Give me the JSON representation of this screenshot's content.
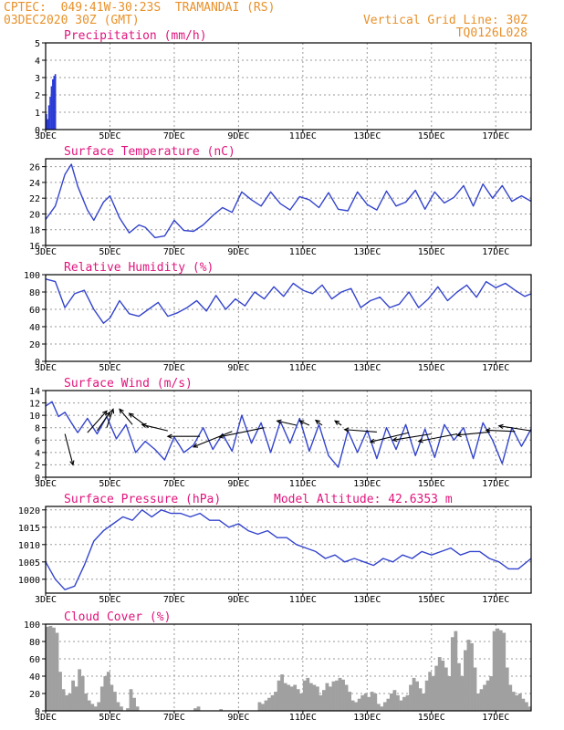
{
  "header": {
    "line1": "CPTEC:  049:41W-30:23S  TRAMANDAI (RS)",
    "line2": "03DEC2020 30Z (GMT)",
    "right1": "Vertical Grid Line: 30Z",
    "right2": "TQ0126L028"
  },
  "x_ticks": [
    "3DEC",
    "5DEC",
    "7DEC",
    "9DEC",
    "11DEC",
    "13DEC",
    "15DEC",
    "17DEC"
  ],
  "colors": {
    "line": "#3344cc",
    "title": "#e0147c",
    "header": "#e8912a",
    "bar_precip": "#2a3bd6",
    "bar_cloud": "#a0a0a0"
  },
  "chart_data": [
    {
      "type": "bar",
      "title": "Precipitation (mm/h)",
      "ylim": [
        0,
        5
      ],
      "yticks": [
        "0",
        "1",
        "2",
        "3",
        "4",
        "5"
      ],
      "x_range_days": [
        3,
        18.1
      ],
      "x": [
        3.0,
        3.04,
        3.08,
        3.12,
        3.16,
        3.2,
        3.24,
        3.28
      ],
      "values": [
        0.9,
        0.6,
        1.4,
        1.9,
        2.5,
        2.9,
        3.1,
        3.2
      ]
    },
    {
      "type": "line",
      "title": "Surface Temperature (nC)",
      "ylim": [
        16,
        27
      ],
      "yticks": [
        "16",
        "18",
        "20",
        "22",
        "24",
        "26"
      ],
      "x": [
        3.0,
        3.3,
        3.6,
        3.8,
        4.0,
        4.3,
        4.5,
        4.8,
        5.0,
        5.3,
        5.6,
        5.9,
        6.1,
        6.4,
        6.7,
        7.0,
        7.3,
        7.6,
        7.9,
        8.2,
        8.5,
        8.8,
        9.1,
        9.4,
        9.7,
        10.0,
        10.3,
        10.6,
        10.9,
        11.2,
        11.5,
        11.8,
        12.1,
        12.4,
        12.7,
        13.0,
        13.3,
        13.6,
        13.9,
        14.2,
        14.5,
        14.8,
        15.1,
        15.4,
        15.7,
        16.0,
        16.3,
        16.6,
        16.9,
        17.2,
        17.5,
        17.8,
        18.1
      ],
      "values": [
        19.3,
        21.0,
        25.0,
        26.3,
        23.5,
        20.5,
        19.2,
        21.5,
        22.3,
        19.5,
        17.6,
        18.6,
        18.3,
        17.0,
        17.2,
        19.2,
        17.9,
        17.8,
        18.6,
        19.8,
        20.8,
        20.2,
        22.8,
        21.8,
        21.0,
        22.8,
        21.3,
        20.5,
        22.2,
        21.8,
        20.8,
        22.7,
        20.6,
        20.4,
        22.8,
        21.2,
        20.5,
        22.9,
        21.0,
        21.5,
        23.0,
        20.6,
        22.8,
        21.4,
        22.1,
        23.6,
        21.0,
        23.8,
        22.0,
        23.6,
        21.6,
        22.3,
        21.6
      ]
    },
    {
      "type": "line",
      "title": "Relative Humidity (%)",
      "ylim": [
        0,
        100
      ],
      "yticks": [
        "0",
        "20",
        "40",
        "60",
        "80",
        "100"
      ],
      "x": [
        3.0,
        3.3,
        3.6,
        3.9,
        4.2,
        4.5,
        4.8,
        5.0,
        5.3,
        5.6,
        5.9,
        6.2,
        6.5,
        6.8,
        7.1,
        7.4,
        7.7,
        8.0,
        8.3,
        8.6,
        8.9,
        9.2,
        9.5,
        9.8,
        10.1,
        10.4,
        10.7,
        11.0,
        11.3,
        11.6,
        11.9,
        12.2,
        12.5,
        12.8,
        13.1,
        13.4,
        13.7,
        14.0,
        14.3,
        14.6,
        14.9,
        15.2,
        15.5,
        15.8,
        16.1,
        16.4,
        16.7,
        17.0,
        17.3,
        17.6,
        17.9,
        18.1
      ],
      "values": [
        95,
        92,
        62,
        78,
        82,
        60,
        44,
        50,
        70,
        55,
        52,
        60,
        68,
        52,
        56,
        62,
        70,
        58,
        76,
        60,
        72,
        64,
        80,
        72,
        86,
        75,
        90,
        82,
        78,
        88,
        72,
        80,
        84,
        62,
        70,
        74,
        62,
        66,
        80,
        62,
        72,
        86,
        70,
        80,
        88,
        74,
        92,
        85,
        90,
        82,
        75,
        78
      ]
    },
    {
      "type": "line",
      "title": "Surface Wind (m/s)",
      "ylim": [
        0,
        14
      ],
      "yticks": [
        "0",
        "2",
        "4",
        "6",
        "8",
        "10",
        "12",
        "14"
      ],
      "x": [
        3.0,
        3.2,
        3.4,
        3.6,
        3.8,
        4.0,
        4.3,
        4.6,
        4.9,
        5.2,
        5.5,
        5.8,
        6.1,
        6.4,
        6.7,
        7.0,
        7.3,
        7.6,
        7.9,
        8.2,
        8.5,
        8.8,
        9.1,
        9.4,
        9.7,
        10.0,
        10.3,
        10.6,
        10.9,
        11.2,
        11.5,
        11.8,
        12.1,
        12.4,
        12.7,
        13.0,
        13.3,
        13.6,
        13.9,
        14.2,
        14.5,
        14.8,
        15.1,
        15.4,
        15.7,
        16.0,
        16.3,
        16.6,
        16.9,
        17.2,
        17.5,
        17.8,
        18.1
      ],
      "values": [
        11.5,
        12.2,
        9.8,
        10.5,
        8.8,
        7.2,
        9.5,
        7.0,
        9.8,
        6.2,
        8.5,
        4.0,
        5.8,
        4.5,
        2.8,
        6.5,
        4.0,
        5.2,
        8.0,
        4.5,
        7.0,
        4.2,
        10.0,
        5.5,
        8.8,
        4.0,
        9.0,
        5.5,
        9.5,
        4.2,
        8.5,
        3.5,
        1.6,
        7.5,
        4.0,
        7.6,
        3.0,
        8.0,
        4.5,
        8.5,
        3.5,
        7.8,
        3.2,
        8.5,
        6.0,
        8.0,
        3.0,
        8.8,
        6.0,
        2.2,
        8.0,
        5.0,
        7.8
      ],
      "arrows": [
        {
          "x": 3.6,
          "y": 7.0,
          "dx": 0.25,
          "dy": -5.0
        },
        {
          "x": 4.3,
          "y": 7.2,
          "dx": 0.6,
          "dy": 3.5
        },
        {
          "x": 4.6,
          "y": 7.5,
          "dx": 0.4,
          "dy": 3.0
        },
        {
          "x": 4.9,
          "y": 8.0,
          "dx": 0.2,
          "dy": 3.0
        },
        {
          "x": 5.7,
          "y": 8.5,
          "dx": -0.4,
          "dy": 2.5
        },
        {
          "x": 6.2,
          "y": 8.0,
          "dx": -0.6,
          "dy": 2.3
        },
        {
          "x": 6.8,
          "y": 7.5,
          "dx": -0.8,
          "dy": 1.0
        },
        {
          "x": 7.8,
          "y": 6.6,
          "dx": -1.0,
          "dy": 0.0
        },
        {
          "x": 8.8,
          "y": 7.4,
          "dx": -1.2,
          "dy": -2.5
        },
        {
          "x": 9.8,
          "y": 8.0,
          "dx": -1.4,
          "dy": -1.5
        },
        {
          "x": 10.8,
          "y": 8.4,
          "dx": -0.6,
          "dy": 0.7
        },
        {
          "x": 11.2,
          "y": 8.4,
          "dx": -0.3,
          "dy": 0.7
        },
        {
          "x": 11.6,
          "y": 8.4,
          "dx": -0.2,
          "dy": 0.8
        },
        {
          "x": 12.2,
          "y": 8.4,
          "dx": -0.2,
          "dy": 0.7
        },
        {
          "x": 13.3,
          "y": 7.3,
          "dx": -1.0,
          "dy": 0.4
        },
        {
          "x": 14.3,
          "y": 7.2,
          "dx": -1.2,
          "dy": -1.5
        },
        {
          "x": 15.0,
          "y": 7.0,
          "dx": -1.2,
          "dy": -1.0
        },
        {
          "x": 15.8,
          "y": 7.0,
          "dx": -1.2,
          "dy": -1.2
        },
        {
          "x": 16.8,
          "y": 7.3,
          "dx": -1.0,
          "dy": -0.5
        },
        {
          "x": 17.6,
          "y": 7.4,
          "dx": -0.9,
          "dy": 0.2
        },
        {
          "x": 18.1,
          "y": 7.5,
          "dx": -1.0,
          "dy": 0.8
        }
      ]
    },
    {
      "type": "line",
      "title": "Surface Pressure (hPa)",
      "subtitle": "Model Altitude: 42.6353 m",
      "ylim": [
        996,
        1021
      ],
      "yticks": [
        "1000",
        "1005",
        "1010",
        "1015",
        "1020"
      ],
      "x": [
        3.0,
        3.3,
        3.6,
        3.9,
        4.2,
        4.5,
        4.8,
        5.1,
        5.4,
        5.7,
        6.0,
        6.3,
        6.6,
        6.9,
        7.2,
        7.5,
        7.8,
        8.1,
        8.4,
        8.7,
        9.0,
        9.3,
        9.6,
        9.9,
        10.2,
        10.5,
        10.8,
        11.1,
        11.4,
        11.7,
        12.0,
        12.3,
        12.6,
        12.9,
        13.2,
        13.5,
        13.8,
        14.1,
        14.4,
        14.7,
        15.0,
        15.3,
        15.6,
        15.9,
        16.2,
        16.5,
        16.8,
        17.1,
        17.4,
        17.7,
        18.1
      ],
      "values": [
        1005,
        1000,
        997,
        998,
        1004,
        1011,
        1014,
        1016,
        1018,
        1017,
        1020,
        1018,
        1020,
        1019,
        1019,
        1018,
        1019,
        1017,
        1017,
        1015,
        1016,
        1014,
        1013,
        1014,
        1012,
        1012,
        1010,
        1009,
        1008,
        1006,
        1007,
        1005,
        1006,
        1005,
        1004,
        1006,
        1005,
        1007,
        1006,
        1008,
        1007,
        1008,
        1009,
        1007,
        1008,
        1008,
        1006,
        1005,
        1003,
        1003,
        1006
      ]
    },
    {
      "type": "bar",
      "title": "Cloud Cover (%)",
      "ylim": [
        0,
        100
      ],
      "yticks": [
        "0",
        "20",
        "40",
        "60",
        "80",
        "100"
      ],
      "x_range_days": [
        3,
        18.1
      ],
      "x": [
        3.0,
        3.1,
        3.2,
        3.3,
        3.4,
        3.5,
        3.6,
        3.7,
        3.8,
        3.9,
        4.0,
        4.1,
        4.2,
        4.3,
        4.4,
        4.5,
        4.6,
        4.7,
        4.8,
        4.9,
        5.0,
        5.1,
        5.2,
        5.3,
        5.4,
        5.5,
        5.6,
        5.7,
        5.8,
        5.9,
        6.0,
        6.1,
        6.2,
        6.3,
        6.4,
        6.5,
        6.6,
        6.7,
        6.8,
        6.9,
        7.0,
        7.1,
        7.2,
        7.3,
        7.4,
        7.5,
        7.6,
        7.7,
        7.8,
        7.9,
        8.0,
        8.1,
        8.2,
        8.3,
        8.4,
        8.5,
        8.6,
        8.7,
        8.8,
        8.9,
        9.0,
        9.1,
        9.2,
        9.3,
        9.4,
        9.5,
        9.6,
        9.7,
        9.8,
        9.9,
        10.0,
        10.1,
        10.2,
        10.3,
        10.4,
        10.5,
        10.6,
        10.7,
        10.8,
        10.9,
        11.0,
        11.1,
        11.2,
        11.3,
        11.4,
        11.5,
        11.6,
        11.7,
        11.8,
        11.9,
        12.0,
        12.1,
        12.2,
        12.3,
        12.4,
        12.5,
        12.6,
        12.7,
        12.8,
        12.9,
        13.0,
        13.1,
        13.2,
        13.3,
        13.4,
        13.5,
        13.6,
        13.7,
        13.8,
        13.9,
        14.0,
        14.1,
        14.2,
        14.3,
        14.4,
        14.5,
        14.6,
        14.7,
        14.8,
        14.9,
        15.0,
        15.1,
        15.2,
        15.3,
        15.4,
        15.5,
        15.6,
        15.7,
        15.8,
        15.9,
        16.0,
        16.1,
        16.2,
        16.3,
        16.4,
        16.5,
        16.6,
        16.7,
        16.8,
        16.9,
        17.0,
        17.1,
        17.2,
        17.3,
        17.4,
        17.5,
        17.6,
        17.7,
        17.8,
        17.9,
        18.0
      ],
      "values": [
        97,
        98,
        96,
        90,
        45,
        25,
        18,
        20,
        35,
        28,
        48,
        40,
        20,
        12,
        8,
        5,
        10,
        28,
        40,
        45,
        30,
        22,
        10,
        5,
        0,
        3,
        25,
        15,
        5,
        0,
        0,
        0,
        0,
        0,
        0,
        0,
        0,
        0,
        0,
        0,
        0,
        0,
        0,
        0,
        0,
        0,
        3,
        5,
        0,
        0,
        0,
        0,
        0,
        0,
        2,
        0,
        0,
        0,
        0,
        0,
        0,
        0,
        0,
        0,
        0,
        0,
        10,
        8,
        12,
        15,
        18,
        22,
        35,
        42,
        32,
        30,
        28,
        30,
        25,
        20,
        35,
        38,
        32,
        30,
        28,
        18,
        24,
        32,
        28,
        34,
        35,
        38,
        36,
        30,
        22,
        12,
        10,
        14,
        18,
        20,
        16,
        22,
        20,
        8,
        5,
        10,
        14,
        20,
        24,
        18,
        12,
        16,
        18,
        30,
        38,
        34,
        26,
        20,
        35,
        45,
        40,
        52,
        62,
        58,
        50,
        40,
        85,
        92,
        55,
        40,
        70,
        82,
        78,
        50,
        20,
        25,
        30,
        35,
        40,
        92,
        95,
        93,
        90,
        50,
        30,
        22,
        18,
        20,
        14,
        10,
        5
      ]
    }
  ]
}
